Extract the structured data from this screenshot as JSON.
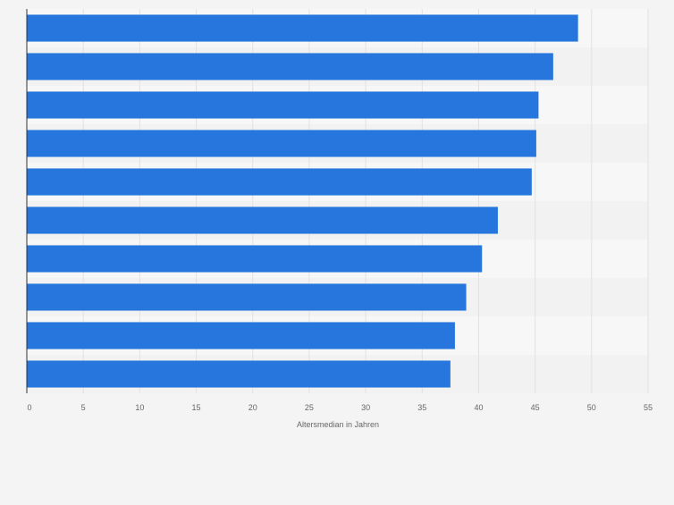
{
  "chart_data": {
    "type": "bar",
    "orientation": "horizontal",
    "values": [
      48.8,
      46.6,
      45.3,
      45.1,
      44.7,
      41.7,
      40.3,
      38.9,
      37.9,
      37.5
    ],
    "xlabel": "Altersmedian in Jahren",
    "xlim": [
      0,
      55
    ],
    "xticks": [
      0,
      5,
      10,
      15,
      20,
      25,
      30,
      35,
      40,
      45,
      50,
      55
    ],
    "xtick_labels": [
      "0",
      "5",
      "10",
      "15",
      "20",
      "25",
      "30",
      "35",
      "40",
      "45",
      "50",
      "55"
    ],
    "grid": true,
    "legend": "none",
    "colors": {
      "bar": "#2776dd",
      "background": "#f4f4f4",
      "band_light": "#f7f7f7",
      "band_dark": "#f2f2f2",
      "grid": "#e1e1e1",
      "axis": "#333333",
      "tick_text": "#666666",
      "label_text": "#666666"
    }
  }
}
